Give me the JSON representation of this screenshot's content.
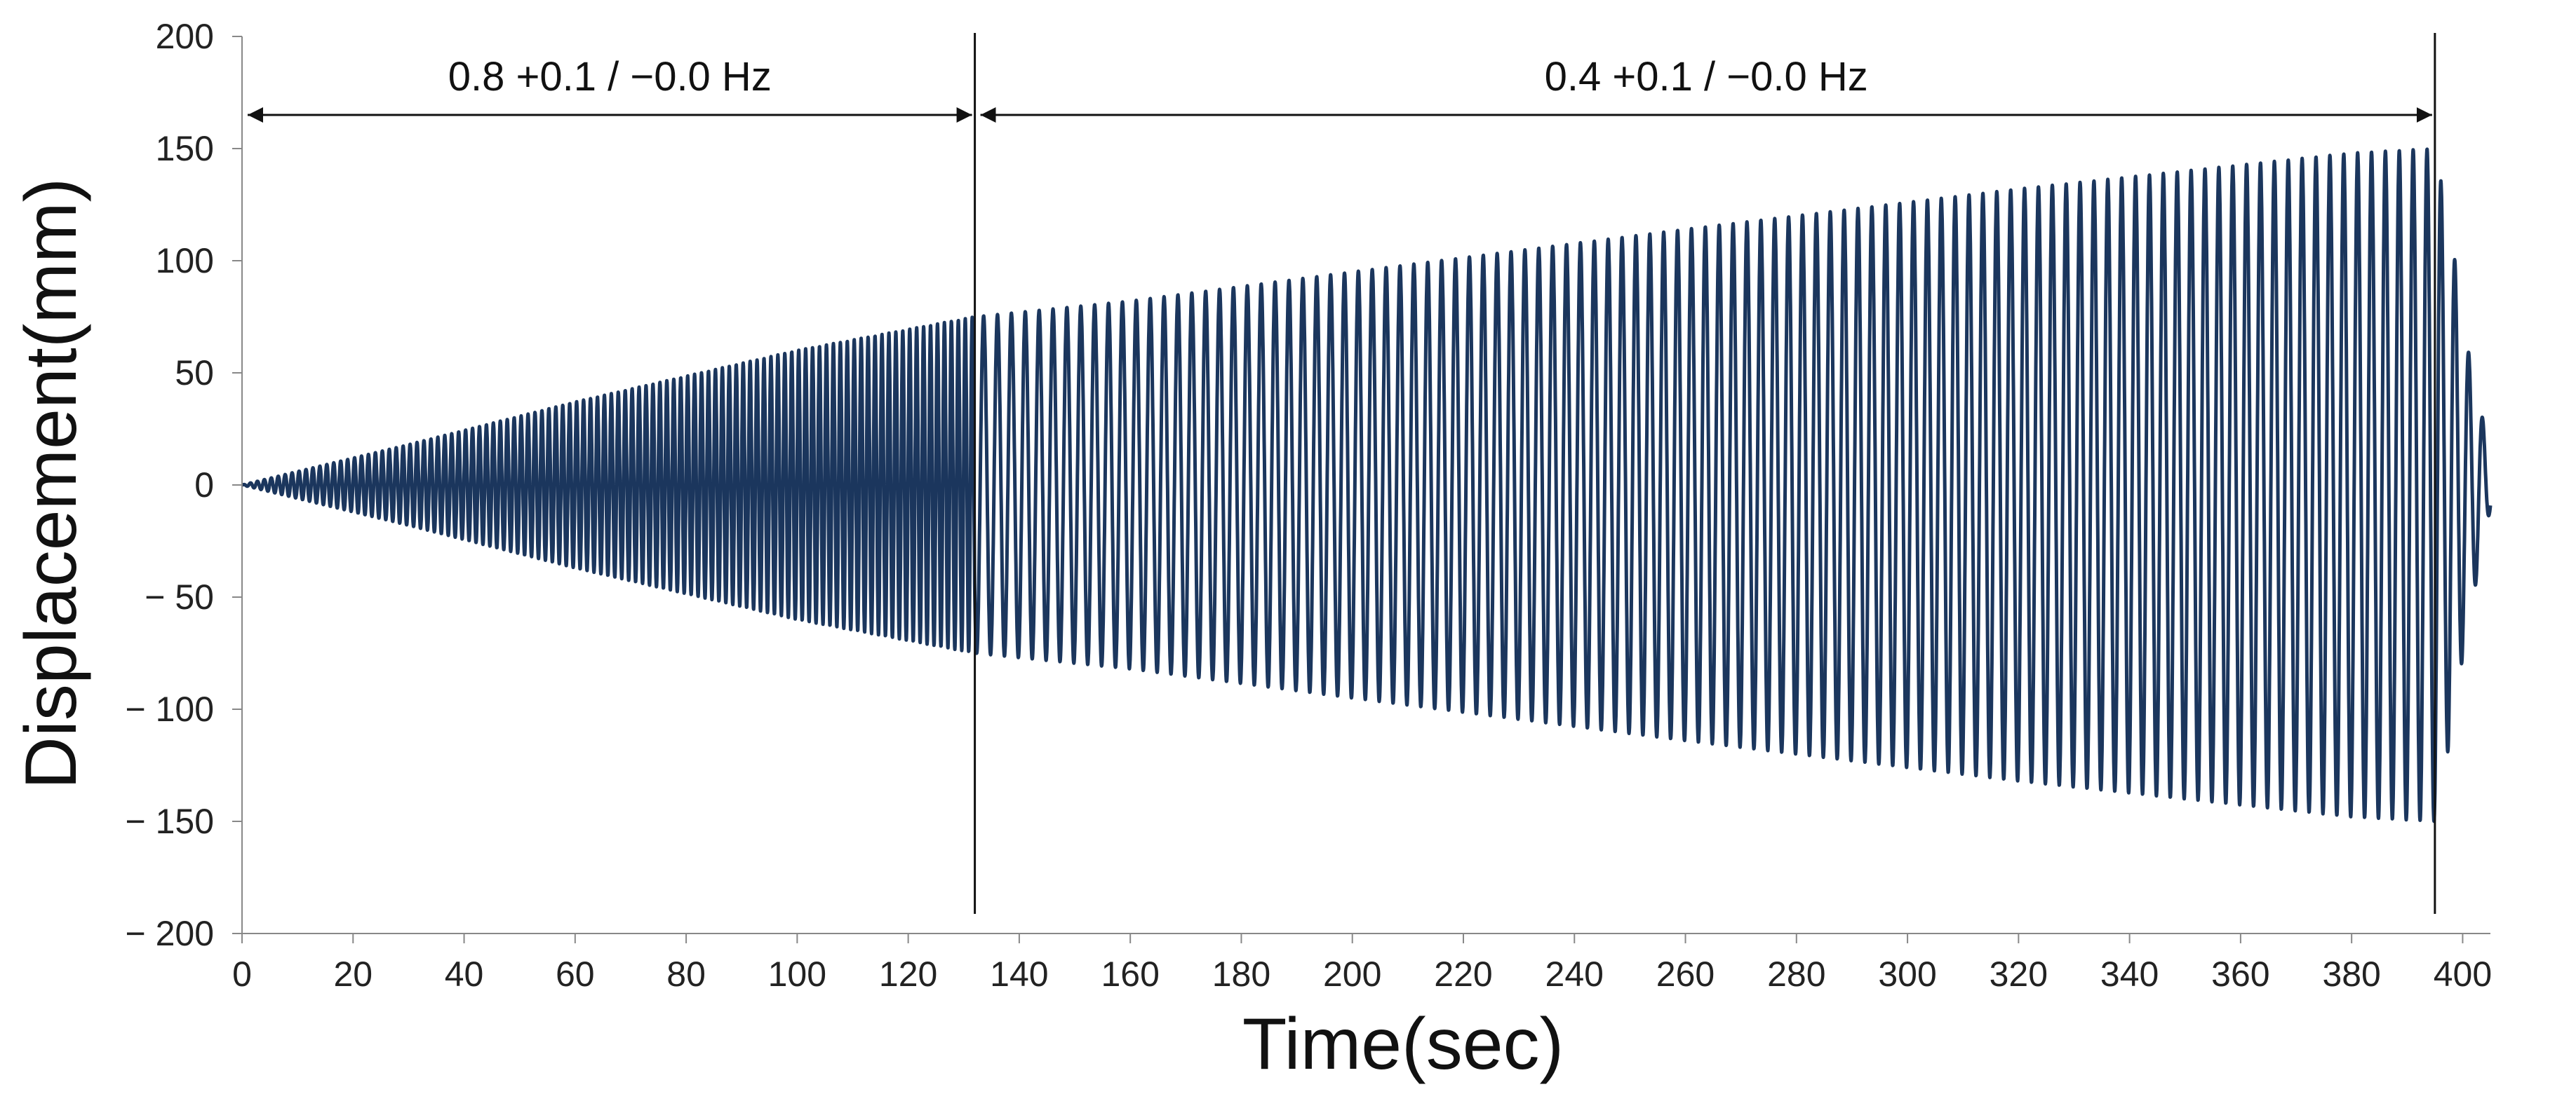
{
  "chart_data": {
    "type": "line",
    "title": "",
    "xlabel": "Time(sec)",
    "ylabel": "Displacement(mm)",
    "xlim": [
      0,
      405
    ],
    "ylim": [
      -200,
      200
    ],
    "x_ticks": [
      "0",
      "20",
      "40",
      "60",
      "80",
      "100",
      "120",
      "140",
      "160",
      "180",
      "200",
      "220",
      "240",
      "260",
      "280",
      "300",
      "320",
      "340",
      "360",
      "380",
      "400"
    ],
    "y_ticks": [
      "200",
      "150",
      "100",
      "50",
      "0",
      "− 50",
      "− 100",
      "− 150",
      "− 200"
    ],
    "grid": false,
    "legend": "none",
    "series_color": "#1b365d",
    "series": [
      {
        "segments": [
          {
            "t_start": 0,
            "t_end": 132,
            "frequency_hz": 0.8,
            "amplitude_start": 0,
            "amplitude_end": 75
          },
          {
            "t_start": 132,
            "t_end": 395,
            "frequency_hz": 0.4,
            "amplitude_start": 75,
            "amplitude_end": 150
          },
          {
            "t_start": 395,
            "t_end": 405,
            "frequency_hz": 0.4,
            "amplitude_start": 150,
            "amplitude_end": 10
          }
        ],
        "envelope": {
          "t": [
            0,
            10,
            30,
            60,
            100,
            132,
            160,
            200,
            260,
            320,
            380,
            395,
            398,
            401,
            404,
            405
          ],
          "amplitude": [
            0,
            6,
            18,
            37,
            60,
            75,
            82,
            95,
            114,
            132,
            148,
            150,
            110,
            60,
            25,
            10
          ]
        }
      }
    ],
    "annotations": [
      {
        "label": "0.8 +0.1 / −0.0 Hz",
        "x_start": 0,
        "x_end": 132,
        "y": 165
      },
      {
        "label": "0.4 +0.1 / −0.0 Hz",
        "x_start": 132,
        "x_end": 395,
        "y": 165
      }
    ],
    "vertical_markers": [
      132,
      395
    ]
  }
}
